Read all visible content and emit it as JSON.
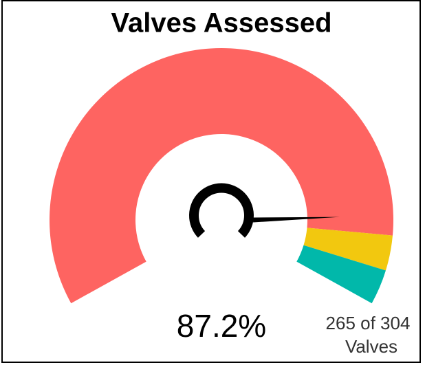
{
  "chart_data": {
    "type": "gauge",
    "title": "Valves Assessed",
    "value": 87.2,
    "value_label": "87.2%",
    "ylim": [
      0,
      100
    ],
    "bands": [
      {
        "color": "#fe6461",
        "value": 90
      },
      {
        "color": "#f2c80f",
        "value": 5
      },
      {
        "color": "#01b8aa",
        "value": 5
      }
    ],
    "needle_color": "#000000",
    "caption": [
      "265 of 304",
      "Valves"
    ]
  }
}
